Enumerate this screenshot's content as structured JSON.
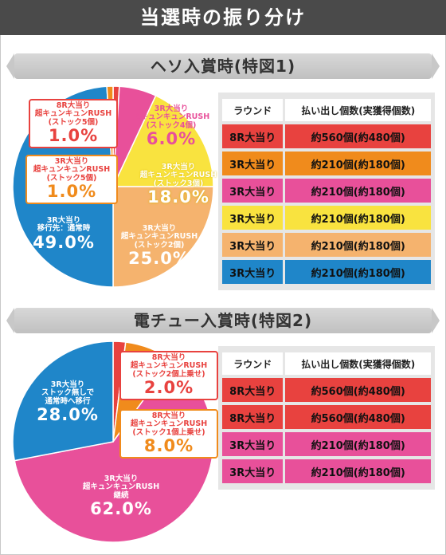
{
  "title": "当選時の振り分け",
  "colors": {
    "red": "#e8423f",
    "orange": "#f08b1c",
    "pink": "#e8509a",
    "yellow": "#f9e33f",
    "peach": "#f5b36e",
    "blue": "#1f86c9"
  },
  "sections": [
    {
      "heading": "ヘソ入賞時(特図1)",
      "table": {
        "headers": [
          "ラウンド",
          "払い出し個数(実獲得個数)"
        ],
        "rows": [
          {
            "round": "8R大当り",
            "payout": "約560個(約480個)",
            "color": "#e8423f"
          },
          {
            "round": "3R大当り",
            "payout": "約210個(約180個)",
            "color": "#f08b1c"
          },
          {
            "round": "3R大当り",
            "payout": "約210個(約180個)",
            "color": "#e8509a"
          },
          {
            "round": "3R大当り",
            "payout": "約210個(約180個)",
            "color": "#f9e33f"
          },
          {
            "round": "3R大当り",
            "payout": "約210個(約180個)",
            "color": "#f5b36e"
          },
          {
            "round": "3R大当り",
            "payout": "約210個(約180個)",
            "color": "#1f86c9"
          }
        ]
      }
    },
    {
      "heading": "電チュー入賞時(特図2)",
      "table": {
        "headers": [
          "ラウンド",
          "払い出し個数(実獲得個数)"
        ],
        "rows": [
          {
            "round": "8R大当り",
            "payout": "約560個(約480個)",
            "color": "#e8423f"
          },
          {
            "round": "8R大当り",
            "payout": "約560個(約480個)",
            "color": "#e8423f"
          },
          {
            "round": "3R大当り",
            "payout": "約210個(約180個)",
            "color": "#e8509a"
          },
          {
            "round": "3R大当り",
            "payout": "約210個(約180個)",
            "color": "#e8509a"
          }
        ]
      }
    }
  ],
  "chart_data": [
    {
      "type": "pie",
      "slices": [
        {
          "label": "8R大当り\n超キュンキュンRUSH\n(ストック5個)",
          "value": 1.0,
          "value_label": "1.0%",
          "color": "#e8423f"
        },
        {
          "label": "3R大当り\n超キュンキュンRUSH\n(ストック4個)",
          "value": 6.0,
          "value_label": "6.0%",
          "color": "#e8509a"
        },
        {
          "label": "3R大当り\n超キュンキュンRUSH\n(ストック3個)",
          "value": 18.0,
          "value_label": "18.0%",
          "color": "#f9e33f"
        },
        {
          "label": "3R大当り\n超キュンキュンRUSH\n(ストック2個)",
          "value": 25.0,
          "value_label": "25.0%",
          "color": "#f5b36e"
        },
        {
          "label": "3R大当り\n移行先：通常時",
          "value": 49.0,
          "value_label": "49.0%",
          "color": "#1f86c9"
        },
        {
          "label": "3R大当り\n超キュンキュンRUSH\n(ストック5個)",
          "value": 1.0,
          "value_label": "1.0%",
          "color": "#f08b1c"
        }
      ]
    },
    {
      "type": "pie",
      "slices": [
        {
          "label": "8R大当り\n超キュンキュンRUSH\n(ストック2個上乗せ)",
          "value": 2.0,
          "value_label": "2.0%",
          "color": "#e8423f"
        },
        {
          "label": "8R大当り\n超キュンキュンRUSH\n(ストック1個上乗せ)",
          "value": 8.0,
          "value_label": "8.0%",
          "color": "#f08b1c"
        },
        {
          "label": "3R大当り\n超キュンキュンRUSH\n継続",
          "value": 62.0,
          "value_label": "62.0%",
          "color": "#e8509a"
        },
        {
          "label": "3R大当り\nストック無しで\n通常時へ移行",
          "value": 28.0,
          "value_label": "28.0%",
          "color": "#1f86c9"
        }
      ]
    }
  ]
}
